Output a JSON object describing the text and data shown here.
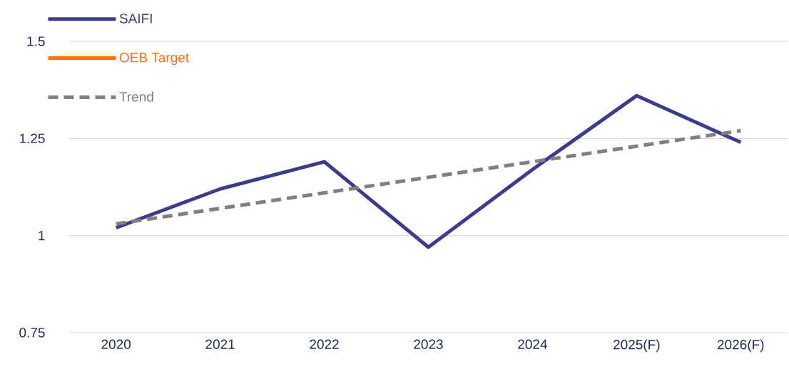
{
  "chart_data": {
    "type": "line",
    "categories": [
      "2020",
      "2021",
      "2022",
      "2023",
      "2024",
      "2025(F)",
      "2026(F)"
    ],
    "series": [
      {
        "name": "SAIFI",
        "color": "#3c3c8c",
        "values": [
          1.02,
          1.12,
          1.19,
          0.97,
          1.17,
          1.36,
          1.24
        ]
      },
      {
        "name": "OEB Target",
        "color": "#ff7010",
        "values": [
          null,
          null,
          null,
          null,
          null,
          null,
          null
        ]
      },
      {
        "name": "Trend",
        "color": "#808080",
        "line_style": "dashed",
        "values": [
          1.03,
          1.07,
          1.11,
          1.15,
          1.19,
          1.23,
          1.27
        ]
      }
    ],
    "ylim": [
      0.75,
      1.5
    ],
    "yticks": [
      0.75,
      1,
      1.25,
      1.5
    ],
    "grid": "y",
    "legend": "top left",
    "marker": "none"
  }
}
